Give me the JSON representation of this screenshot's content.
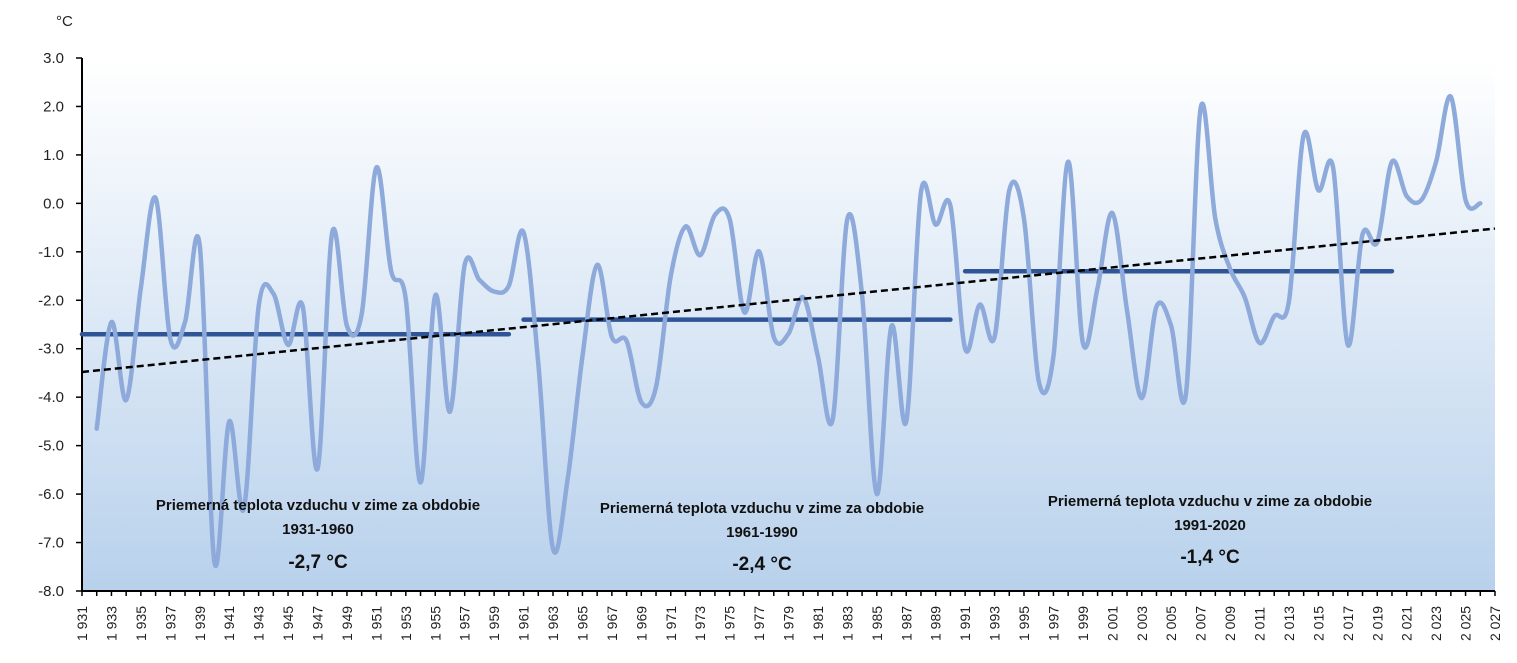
{
  "chart_data": {
    "type": "line",
    "ylabel": "°C",
    "ylim": [
      -8,
      3
    ],
    "yticks": [
      "3.0",
      "2.0",
      "1.0",
      "0.0",
      "-1.0",
      "-2.0",
      "-3.0",
      "-4.0",
      "-5.0",
      "-6.0",
      "-7.0",
      "-8.0"
    ],
    "xlim": [
      1931,
      2027
    ],
    "xtick_format": "thousands-space",
    "x": [
      1932,
      1933,
      1934,
      1935,
      1936,
      1937,
      1938,
      1939,
      1940,
      1941,
      1942,
      1943,
      1944,
      1945,
      1946,
      1947,
      1948,
      1949,
      1950,
      1951,
      1952,
      1953,
      1954,
      1955,
      1956,
      1957,
      1958,
      1959,
      1960,
      1961,
      1962,
      1963,
      1964,
      1965,
      1966,
      1967,
      1968,
      1969,
      1970,
      1971,
      1972,
      1973,
      1974,
      1975,
      1976,
      1977,
      1978,
      1979,
      1980,
      1981,
      1982,
      1983,
      1984,
      1985,
      1986,
      1987,
      1988,
      1989,
      1990,
      1991,
      1992,
      1993,
      1994,
      1995,
      1996,
      1997,
      1998,
      1999,
      2000,
      2001,
      2002,
      2003,
      2004,
      2005,
      2006,
      2007,
      2008,
      2009,
      2010,
      2011,
      2012,
      2013,
      2014,
      2015,
      2016,
      2017,
      2018,
      2019,
      2020,
      2021,
      2022,
      2023,
      2024,
      2025,
      2026
    ],
    "series": [
      {
        "values": [
          -4.65,
          -2.45,
          -4.06,
          -1.74,
          0.11,
          -2.8,
          -2.45,
          -0.87,
          -7.41,
          -4.5,
          -6.3,
          -2.13,
          -1.86,
          -2.92,
          -2.13,
          -5.48,
          -0.6,
          -2.53,
          -2.29,
          0.74,
          -1.39,
          -1.98,
          -5.76,
          -1.9,
          -4.3,
          -1.27,
          -1.58,
          -1.82,
          -1.7,
          -0.6,
          -3.3,
          -7.13,
          -5.68,
          -3.16,
          -1.27,
          -2.76,
          -2.84,
          -4.1,
          -3.79,
          -1.5,
          -0.48,
          -1.07,
          -0.24,
          -0.32,
          -2.25,
          -0.99,
          -2.76,
          -2.69,
          -1.94,
          -3.16,
          -4.46,
          -0.32,
          -1.9,
          -6.0,
          -2.53,
          -4.5,
          0.23,
          -0.44,
          -0.05,
          -3.0,
          -2.09,
          -2.76,
          0.27,
          -0.32,
          -3.67,
          -3.16,
          0.86,
          -2.88,
          -1.74,
          -0.2,
          -2.21,
          -4.02,
          -2.13,
          -2.53,
          -3.94,
          1.96,
          -0.32,
          -1.35,
          -1.94,
          -2.88,
          -2.33,
          -2.02,
          1.41,
          0.27,
          0.74,
          -2.92,
          -0.64,
          -0.8,
          0.86,
          0.15,
          0.07,
          0.86,
          2.2,
          0.07,
          0.0
        ],
        "color": "#8eaadb",
        "smooth": true
      }
    ],
    "trend": {
      "from": [
        1931,
        -3.48
      ],
      "to": [
        2027,
        -0.52
      ],
      "style": "dashed",
      "color": "#000000"
    },
    "period_means": [
      {
        "start": 1931,
        "end": 1960,
        "value": -2.7,
        "label_line1": "Priemerná teplota vzduchu v zime za obdobie",
        "label_line2": "1931-1960",
        "label_value": "-2,7 °C"
      },
      {
        "start": 1961,
        "end": 1990,
        "value": -2.4,
        "label_line1": "Priemerná teplota vzduchu v zime za obdobie",
        "label_line2": "1961-1990",
        "label_value": "-2,4 °C"
      },
      {
        "start": 1991,
        "end": 2020,
        "value": -1.4,
        "label_line1": "Priemerná teplota vzduchu v zime za obdobie",
        "label_line2": "1991-2020",
        "label_value": "-1,4 °C"
      }
    ],
    "mean_color": "#2f5597",
    "background_gradient": [
      "#ffffff",
      "#b8d1ec"
    ],
    "grid": false,
    "legend": "none"
  }
}
